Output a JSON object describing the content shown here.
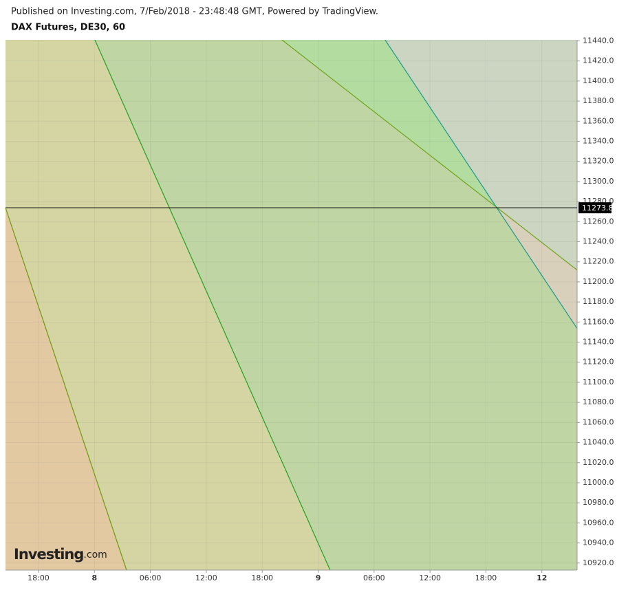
{
  "header": {
    "published": "Published on Investing.com, 7/Feb/2018 - 23:48:48 GMT, Powered by TradingView.",
    "symbol": "DAX Futures, DE30, 60"
  },
  "logo": {
    "brand": "Investing",
    "suffix": ".com"
  },
  "chart_data": {
    "type": "line",
    "xlim": [
      -0.59,
      9.63
    ],
    "xticks": [
      {
        "value": 0,
        "label": "18:00"
      },
      {
        "value": 1,
        "label": "8"
      },
      {
        "value": 2,
        "label": "06:00"
      },
      {
        "value": 3,
        "label": "12:00"
      },
      {
        "value": 4,
        "label": "18:00"
      },
      {
        "value": 5,
        "label": "9"
      },
      {
        "value": 6,
        "label": "06:00"
      },
      {
        "value": 7,
        "label": "12:00"
      },
      {
        "value": 8,
        "label": "18:00"
      },
      {
        "value": 9,
        "label": "12"
      }
    ],
    "ylim": [
      10913,
      11441
    ],
    "yticks": [
      {
        "value": 11440,
        "label": "11440.0"
      },
      {
        "value": 11420,
        "label": "11420.0"
      },
      {
        "value": 11400,
        "label": "11400.0"
      },
      {
        "value": 11380,
        "label": "11380.0"
      },
      {
        "value": 11360,
        "label": "11360.0"
      },
      {
        "value": 11340,
        "label": "11340.0"
      },
      {
        "value": 11320,
        "label": "11320.0"
      },
      {
        "value": 11300,
        "label": "11300.0"
      },
      {
        "value": 11280,
        "label": "11280.0"
      },
      {
        "value": 11260,
        "label": "11260.0"
      },
      {
        "value": 11240,
        "label": "11240.0"
      },
      {
        "value": 11220,
        "label": "11220.0"
      },
      {
        "value": 11200,
        "label": "11200.0"
      },
      {
        "value": 11180,
        "label": "11180.0"
      },
      {
        "value": 11160,
        "label": "11160.0"
      },
      {
        "value": 11140,
        "label": "11140.0"
      },
      {
        "value": 11120,
        "label": "11120.0"
      },
      {
        "value": 11100,
        "label": "11100.0"
      },
      {
        "value": 11080,
        "label": "11080.0"
      },
      {
        "value": 11060,
        "label": "11060.0"
      },
      {
        "value": 11040,
        "label": "11040.0"
      },
      {
        "value": 11020,
        "label": "11020.0"
      },
      {
        "value": 11000,
        "label": "11000.0"
      },
      {
        "value": 10980,
        "label": "10980.0"
      },
      {
        "value": 10960,
        "label": "10960.0"
      },
      {
        "value": 10940,
        "label": "10940.0"
      },
      {
        "value": 10920,
        "label": "10920.0"
      }
    ],
    "grid": true,
    "last_price": 11273.8,
    "series": [
      {
        "color": "#6b9a0c",
        "x": [
          -0.59,
          1.574
        ],
        "values": [
          11273.8,
          10913
        ]
      },
      {
        "color": "#22a022",
        "x": [
          1.008,
          5.213
        ],
        "values": [
          11441,
          10913
        ]
      },
      {
        "color": "#6fa318",
        "x": [
          4.353,
          9.63
        ],
        "values": [
          11441,
          11211.8
        ]
      },
      {
        "color": "#1a9a8a",
        "x": [
          6.197,
          9.63
        ],
        "values": [
          11441,
          11153.6
        ]
      }
    ]
  }
}
